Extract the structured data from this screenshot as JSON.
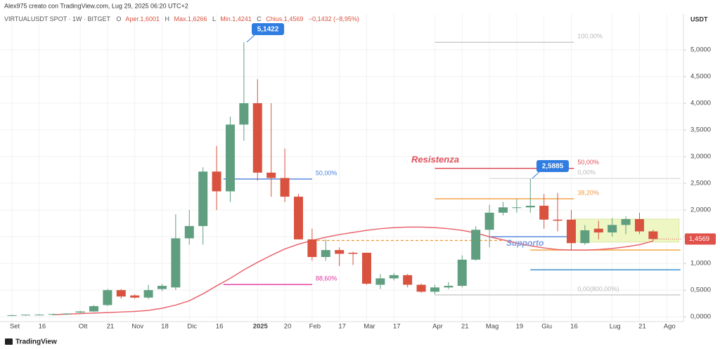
{
  "header": {
    "author": "Alex975 creato con TradingView.com, Lug 29, 2025 06:20 UTC+2",
    "symbol": "VIRTUALUSDT SPOT · 1W · BITGET",
    "o_key": "O",
    "open": "Aper.1,6001",
    "h_key": "H",
    "high": "Max.1,6266",
    "l_key": "L",
    "low": "Min.1,4241",
    "c_key": "C",
    "close": "Chius.1,4569",
    "change": "−0,1432 (−8,95%)"
  },
  "footer": {
    "brand": "TradingView"
  },
  "chart_data": {
    "type": "candlestick",
    "currency": "USDT",
    "up_color": "#5f9f80",
    "down_color": "#d9523f",
    "open": [
      0.03,
      0.03,
      0.04,
      0.04,
      0.05,
      0.08,
      0.1,
      0.22,
      0.5,
      0.4,
      0.36,
      0.52,
      0.55,
      1.47,
      1.7,
      2.72,
      2.35,
      3.6,
      4.0,
      2.7,
      2.6,
      2.25,
      1.45,
      1.12,
      1.25,
      1.2,
      1.2,
      0.6,
      0.72,
      0.78,
      0.6,
      0.47,
      0.55,
      0.58,
      1.07,
      1.63,
      1.95,
      2.05,
      2.05,
      2.08,
      1.82,
      1.82,
      1.38,
      1.65,
      1.58,
      1.72,
      1.83,
      1.6001
    ],
    "high": [
      0.04,
      0.04,
      0.05,
      0.06,
      0.07,
      0.11,
      0.22,
      0.52,
      0.52,
      0.42,
      0.6,
      0.62,
      1.92,
      2.0,
      2.8,
      3.2,
      3.75,
      5.1422,
      4.45,
      4.0,
      3.15,
      2.3,
      1.65,
      1.45,
      1.3,
      1.22,
      1.2,
      0.8,
      0.82,
      0.8,
      0.62,
      0.6,
      0.65,
      1.15,
      1.7,
      2.1,
      2.15,
      2.2,
      2.5885,
      2.3,
      2.32,
      2.0,
      1.72,
      1.8,
      1.85,
      1.88,
      1.95,
      1.6266
    ],
    "low": [
      0.02,
      0.02,
      0.03,
      0.03,
      0.04,
      0.07,
      0.09,
      0.2,
      0.34,
      0.34,
      0.33,
      0.48,
      0.5,
      1.35,
      1.35,
      2.0,
      2.15,
      3.3,
      2.55,
      2.25,
      2.15,
      1.45,
      1.05,
      1.05,
      0.95,
      0.97,
      0.6,
      0.52,
      0.68,
      0.55,
      0.45,
      0.42,
      0.52,
      0.55,
      1.05,
      1.3,
      1.9,
      1.95,
      1.95,
      1.65,
      1.6,
      1.25,
      1.35,
      1.45,
      1.5,
      1.55,
      1.55,
      1.4241
    ],
    "close": [
      0.03,
      0.04,
      0.04,
      0.05,
      0.06,
      0.1,
      0.2,
      0.5,
      0.38,
      0.36,
      0.5,
      0.58,
      1.47,
      1.7,
      2.72,
      2.35,
      3.6,
      4.0,
      2.7,
      2.6,
      2.25,
      1.45,
      1.12,
      1.25,
      1.18,
      1.18,
      0.62,
      0.72,
      0.78,
      0.6,
      0.47,
      0.55,
      0.58,
      1.07,
      1.63,
      1.95,
      2.05,
      2.05,
      2.08,
      1.82,
      1.8,
      1.38,
      1.62,
      1.58,
      1.72,
      1.83,
      1.6,
      1.4569
    ],
    "ma": {
      "color": "#e8646c",
      "values": [
        null,
        null,
        null,
        0.04,
        0.05,
        0.06,
        0.07,
        0.08,
        0.09,
        0.1,
        0.12,
        0.16,
        0.22,
        0.3,
        0.43,
        0.58,
        0.72,
        0.88,
        1.02,
        1.15,
        1.27,
        1.36,
        1.43,
        1.49,
        1.54,
        1.58,
        1.62,
        1.65,
        1.67,
        1.68,
        1.68,
        1.67,
        1.65,
        1.62,
        1.57,
        1.5,
        1.44,
        1.38,
        1.33,
        1.29,
        1.26,
        1.25,
        1.25,
        1.26,
        1.28,
        1.31,
        1.35,
        1.42
      ]
    },
    "xlim": [
      -0.88,
      49.12
    ],
    "xticks": [
      {
        "value": 0,
        "label": "Set"
      },
      {
        "value": 2,
        "label": "16"
      },
      {
        "value": 5,
        "label": "Ott"
      },
      {
        "value": 7,
        "label": "21"
      },
      {
        "value": 9,
        "label": "Nov"
      },
      {
        "value": 11,
        "label": "18"
      },
      {
        "value": 13,
        "label": "Dic"
      },
      {
        "value": 15,
        "label": "16"
      },
      {
        "value": 18,
        "label": "2025"
      },
      {
        "value": 20,
        "label": "20"
      },
      {
        "value": 22,
        "label": "Feb"
      },
      {
        "value": 24,
        "label": "17"
      },
      {
        "value": 26,
        "label": "Mar"
      },
      {
        "value": 28,
        "label": "17"
      },
      {
        "value": 31,
        "label": "Apr"
      },
      {
        "value": 33,
        "label": "21"
      },
      {
        "value": 35,
        "label": "Mag"
      },
      {
        "value": 37,
        "label": "19"
      },
      {
        "value": 39,
        "label": "Giu"
      },
      {
        "value": 41,
        "label": "16"
      },
      {
        "value": 44,
        "label": "Lug"
      },
      {
        "value": 46,
        "label": "21"
      },
      {
        "value": 48,
        "label": "Ago"
      }
    ],
    "ylim": [
      -0.09,
      5.67
    ],
    "yticks": [
      {
        "value": 0,
        "label": "0,0000"
      },
      {
        "value": 0.5,
        "label": "0,5000"
      },
      {
        "value": 1,
        "label": "1,0000"
      },
      {
        "value": 1.5,
        "label": "1,5000"
      },
      {
        "value": 2,
        "label": "2,0000"
      },
      {
        "value": 2.5,
        "label": "2,5000"
      },
      {
        "value": 3,
        "label": "3,0000"
      },
      {
        "value": 3.5,
        "label": "3,5000"
      },
      {
        "value": 4,
        "label": "4,0000"
      },
      {
        "value": 4.5,
        "label": "4,5000"
      },
      {
        "value": 5,
        "label": "5,0000"
      }
    ],
    "grid": true,
    "last_price": {
      "value": 1.4569,
      "label": "1,4569",
      "color": "#e0514a"
    },
    "zone": {
      "x": [
        41.2,
        48.9
      ],
      "range": [
        1.4,
        1.83
      ],
      "color": "#eef6c4"
    },
    "lines": [
      {
        "value": 2.58,
        "x": [
          15.5,
          22.0
        ],
        "color": "#4a7fdc",
        "label": "50,00%"
      },
      {
        "value": 0.605,
        "x": [
          15.5,
          22.0
        ],
        "color": "#e0329a",
        "label": "88,60%"
      },
      {
        "value": 1.43,
        "x": [
          22.0,
          36.5
        ],
        "color": "#f09a3c",
        "dashed": true
      },
      {
        "value": 5.14,
        "x": [
          31.0,
          41.2
        ],
        "color": "#c8c8c8",
        "label": "100,00%"
      },
      {
        "value": 2.78,
        "x": [
          31.0,
          41.2
        ],
        "color": "#e0505a",
        "label": "50,00%"
      },
      {
        "value": 2.59,
        "x": [
          35.0,
          49.0
        ],
        "color": "#dddddd",
        "label": "0,00%"
      },
      {
        "value": 2.21,
        "x": [
          31.0,
          41.2
        ],
        "color": "#f09a3c",
        "label": "38,20%"
      },
      {
        "value": 1.5,
        "x": [
          35.0,
          41.2
        ],
        "color": "#4a7fdc"
      },
      {
        "value": 1.25,
        "x": [
          38.0,
          49.0
        ],
        "color": "#f0a030"
      },
      {
        "value": 0.88,
        "x": [
          38.0,
          49.0
        ],
        "color": "#3a8fd0"
      },
      {
        "value": 0.41,
        "x": [
          31.0,
          49.0
        ],
        "color": "#c8c8c8",
        "label": "0,00(800,00%)"
      }
    ],
    "annotations": {
      "resistance": "Resistenza",
      "support": "Supporto",
      "peak": "5,1422",
      "recent_high": "2,5885"
    }
  }
}
